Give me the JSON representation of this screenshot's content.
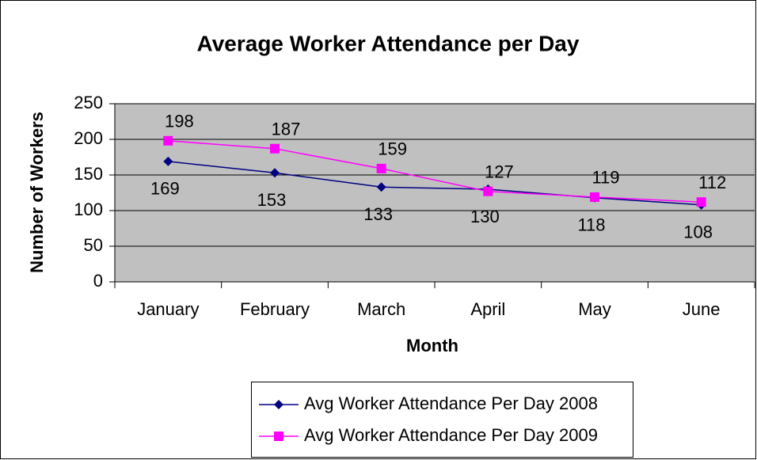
{
  "chart_data": {
    "type": "line",
    "title": "Average Worker Attendance per Day",
    "x_label": "Month",
    "y_label": "Number of Workers",
    "categories": [
      "January",
      "February",
      "March",
      "April",
      "May",
      "June"
    ],
    "series": [
      {
        "name": "Avg Worker Attendance Per Day 2008",
        "color": "#000080",
        "marker": "diamond",
        "values": [
          169,
          153,
          133,
          130,
          118,
          108
        ]
      },
      {
        "name": "Avg Worker Attendance Per Day 2009",
        "color": "#ff00ff",
        "marker": "square",
        "values": [
          198,
          187,
          159,
          127,
          119,
          112
        ]
      }
    ],
    "ylim": [
      0,
      250
    ],
    "yticks": [
      0,
      50,
      100,
      150,
      200,
      250
    ],
    "grid": true,
    "legend": "bottom"
  }
}
